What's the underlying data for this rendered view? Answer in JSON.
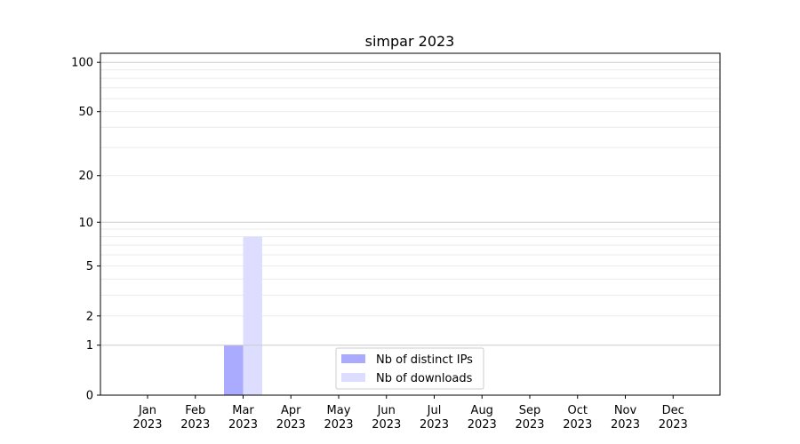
{
  "chart_data": {
    "type": "bar",
    "title": "simpar 2023",
    "xlabel": "",
    "ylabel": "",
    "yscale": "log(1+y)",
    "ylim": [
      0,
      116
    ],
    "grid": true,
    "legend_position": "lower-center",
    "categories": [
      "Jan\n2023",
      "Feb\n2023",
      "Mar\n2023",
      "Apr\n2023",
      "May\n2023",
      "Jun\n2023",
      "Jul\n2023",
      "Aug\n2023",
      "Sep\n2023",
      "Oct\n2023",
      "Nov\n2023",
      "Dec\n2023"
    ],
    "ytick_values": [
      0,
      1,
      2,
      5,
      10,
      20,
      50,
      100
    ],
    "ytick_labels": [
      "0",
      "1",
      "2",
      "5",
      "10",
      "20",
      "50",
      "100"
    ],
    "series": [
      {
        "name": "Nb of distinct IPs",
        "color": "#aaaaff",
        "values": [
          0,
          0,
          1,
          0,
          0,
          0,
          0,
          0,
          0,
          0,
          0,
          0
        ]
      },
      {
        "name": "Nb of downloads",
        "color": "#ddddff",
        "values": [
          0,
          0,
          8,
          0,
          0,
          0,
          0,
          0,
          0,
          0,
          0,
          0
        ]
      }
    ]
  }
}
